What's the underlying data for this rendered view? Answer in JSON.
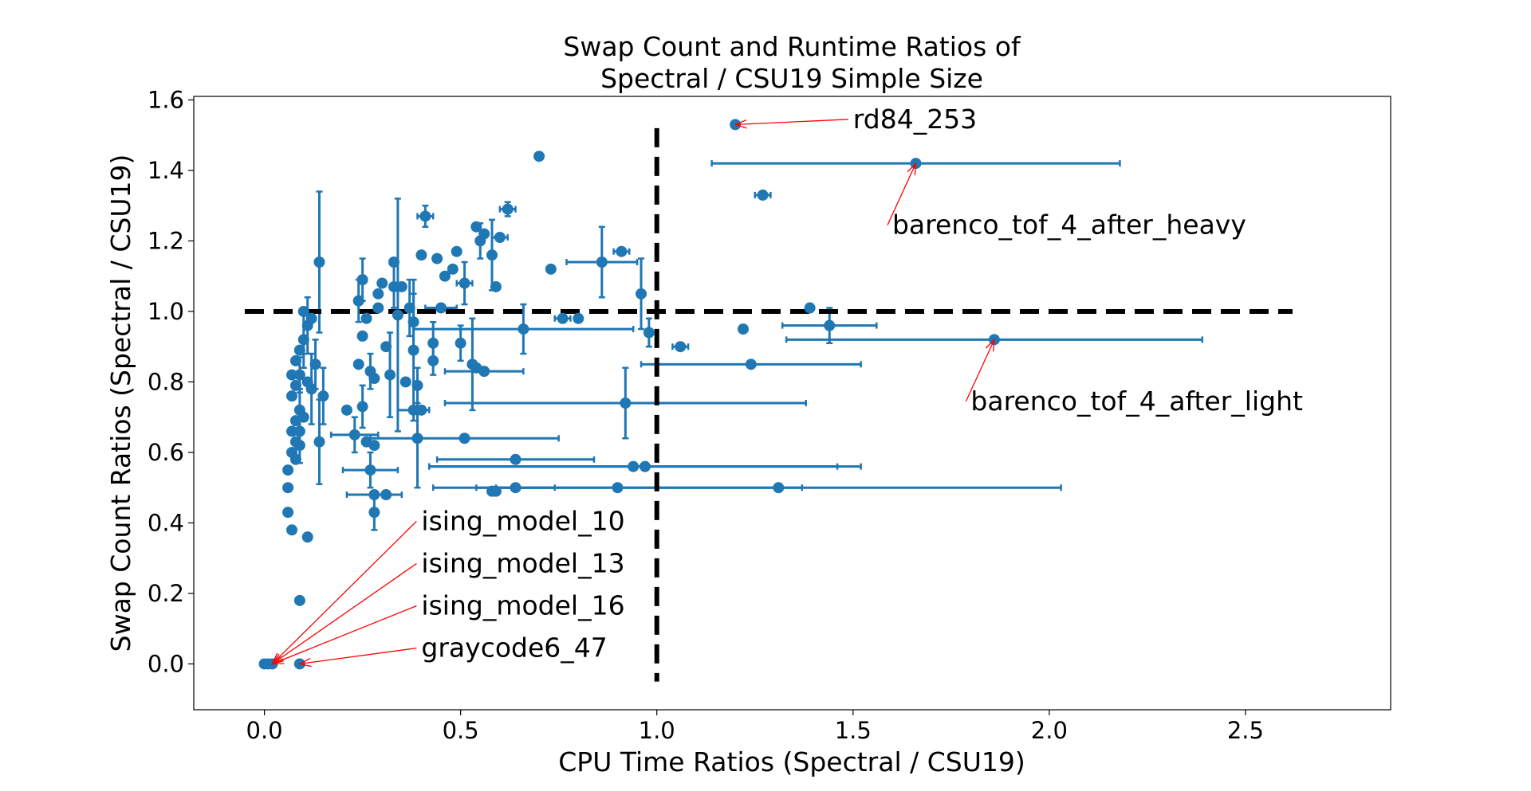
{
  "chart_data": {
    "type": "scatter",
    "title_lines": [
      "Swap Count and Runtime Ratios of",
      "Spectral / CSU19 Simple Size"
    ],
    "xlabel": "CPU Time Ratios (Spectral / CSU19)",
    "ylabel": "Swap Count Ratios (Spectral / CSU19)",
    "xlim": [
      -0.18,
      2.87
    ],
    "ylim": [
      -0.13,
      1.61
    ],
    "xticks": [
      0.0,
      0.5,
      1.0,
      1.5,
      2.0,
      2.5
    ],
    "xtick_labels": [
      "0.0",
      "0.5",
      "1.0",
      "1.5",
      "2.0",
      "2.5"
    ],
    "yticks": [
      0.0,
      0.2,
      0.4,
      0.6,
      0.8,
      1.0,
      1.2,
      1.4,
      1.6
    ],
    "ytick_labels": [
      "0.0",
      "0.2",
      "0.4",
      "0.6",
      "0.8",
      "1.0",
      "1.2",
      "1.4",
      "1.6"
    ],
    "colors": {
      "series": "#1f77b4",
      "reference": "#000000",
      "annotation": "#ff0000"
    },
    "reference_lines": [
      {
        "orientation": "horizontal",
        "value": 1.0,
        "from": -0.05,
        "to": 2.62
      },
      {
        "orientation": "vertical",
        "value": 1.0,
        "from": -0.05,
        "to": 1.52
      }
    ],
    "points": [
      {
        "x": 0.0,
        "y": 0.0
      },
      {
        "x": 0.01,
        "y": 0.0
      },
      {
        "x": 0.02,
        "y": 0.0
      },
      {
        "x": 0.09,
        "y": 0.0
      },
      {
        "x": 0.09,
        "y": 0.18
      },
      {
        "x": 0.11,
        "y": 0.36
      },
      {
        "x": 0.07,
        "y": 0.38
      },
      {
        "x": 0.06,
        "y": 0.43
      },
      {
        "x": 0.06,
        "y": 0.5
      },
      {
        "x": 0.06,
        "y": 0.55
      },
      {
        "x": 0.07,
        "y": 0.6
      },
      {
        "x": 0.08,
        "y": 0.58
      },
      {
        "x": 0.09,
        "y": 0.62,
        "yerr": 0.05
      },
      {
        "x": 0.07,
        "y": 0.66
      },
      {
        "x": 0.08,
        "y": 0.69
      },
      {
        "x": 0.09,
        "y": 0.72,
        "yerr": 0.06
      },
      {
        "x": 0.1,
        "y": 0.7
      },
      {
        "x": 0.07,
        "y": 0.76
      },
      {
        "x": 0.08,
        "y": 0.79
      },
      {
        "x": 0.09,
        "y": 0.82,
        "yerr": 0.05
      },
      {
        "x": 0.07,
        "y": 0.82
      },
      {
        "x": 0.08,
        "y": 0.86
      },
      {
        "x": 0.09,
        "y": 0.89
      },
      {
        "x": 0.1,
        "y": 0.92,
        "yerr": 0.08
      },
      {
        "x": 0.11,
        "y": 0.96,
        "yerr": 0.08
      },
      {
        "x": 0.1,
        "y": 1.0
      },
      {
        "x": 0.12,
        "y": 0.98
      },
      {
        "x": 0.13,
        "y": 0.85,
        "yerr": 0.07
      },
      {
        "x": 0.12,
        "y": 0.78,
        "yerr": 0.1
      },
      {
        "x": 0.11,
        "y": 0.8
      },
      {
        "x": 0.09,
        "y": 0.66
      },
      {
        "x": 0.08,
        "y": 0.63
      },
      {
        "x": 0.15,
        "y": 0.76,
        "yerr": 0.08
      },
      {
        "x": 0.14,
        "y": 0.63,
        "yerr": 0.12
      },
      {
        "x": 0.14,
        "y": 1.14,
        "yerr": 0.2
      },
      {
        "x": 0.21,
        "y": 0.72
      },
      {
        "x": 0.23,
        "y": 0.65,
        "xerr": 0.06,
        "yerr": 0.05
      },
      {
        "x": 0.24,
        "y": 0.85
      },
      {
        "x": 0.25,
        "y": 0.73,
        "yerr": 0.06
      },
      {
        "x": 0.26,
        "y": 0.63
      },
      {
        "x": 0.25,
        "y": 0.93
      },
      {
        "x": 0.24,
        "y": 1.03,
        "yerr": 0.06
      },
      {
        "x": 0.25,
        "y": 1.09,
        "yerr": 0.06
      },
      {
        "x": 0.26,
        "y": 0.98
      },
      {
        "x": 0.27,
        "y": 0.55,
        "xerr": 0.07,
        "yerr": 0.05
      },
      {
        "x": 0.28,
        "y": 0.43,
        "yerr": 0.05
      },
      {
        "x": 0.28,
        "y": 0.48,
        "xerr": 0.07
      },
      {
        "x": 0.28,
        "y": 0.62
      },
      {
        "x": 0.27,
        "y": 0.83,
        "yerr": 0.05
      },
      {
        "x": 0.28,
        "y": 0.81
      },
      {
        "x": 0.29,
        "y": 1.05
      },
      {
        "x": 0.29,
        "y": 1.01
      },
      {
        "x": 0.3,
        "y": 1.08
      },
      {
        "x": 0.31,
        "y": 0.48
      },
      {
        "x": 0.31,
        "y": 0.9
      },
      {
        "x": 0.32,
        "y": 0.82,
        "yerr": 0.12
      },
      {
        "x": 0.33,
        "y": 1.07,
        "yerr": 0.06
      },
      {
        "x": 0.34,
        "y": 0.99,
        "yerr": 0.33
      },
      {
        "x": 0.33,
        "y": 1.14
      },
      {
        "x": 0.35,
        "y": 1.07
      },
      {
        "x": 0.36,
        "y": 0.8
      },
      {
        "x": 0.37,
        "y": 1.01,
        "yerr": 0.08
      },
      {
        "x": 0.38,
        "y": 0.97,
        "yerr": 0.08
      },
      {
        "x": 0.38,
        "y": 0.89,
        "yerr": 0.2
      },
      {
        "x": 0.39,
        "y": 0.79,
        "yerr": 0.05
      },
      {
        "x": 0.38,
        "y": 0.72,
        "xerr": 0.04
      },
      {
        "x": 0.4,
        "y": 0.72
      },
      {
        "x": 0.39,
        "y": 0.64,
        "yerr": 0.14
      },
      {
        "x": 0.4,
        "y": 1.16
      },
      {
        "x": 0.41,
        "y": 1.27,
        "xerr": 0.02,
        "yerr": 0.03
      },
      {
        "x": 0.43,
        "y": 0.91,
        "yerr": 0.06
      },
      {
        "x": 0.43,
        "y": 0.86,
        "yerr": 0.04
      },
      {
        "x": 0.44,
        "y": 1.15
      },
      {
        "x": 0.45,
        "y": 1.01,
        "xerr": 0.04
      },
      {
        "x": 0.46,
        "y": 1.1
      },
      {
        "x": 0.48,
        "y": 1.12
      },
      {
        "x": 0.49,
        "y": 1.17
      },
      {
        "x": 0.5,
        "y": 0.91,
        "yerr": 0.05
      },
      {
        "x": 0.51,
        "y": 0.64,
        "xerr": 0.24
      },
      {
        "x": 0.51,
        "y": 1.08,
        "xerr": 0.02,
        "yerr": 0.06
      },
      {
        "x": 0.53,
        "y": 0.85,
        "yerr": 0.13
      },
      {
        "x": 0.54,
        "y": 0.84
      },
      {
        "x": 0.54,
        "y": 1.24
      },
      {
        "x": 0.55,
        "y": 1.2,
        "yerr": 0.05
      },
      {
        "x": 0.56,
        "y": 1.22
      },
      {
        "x": 0.56,
        "y": 0.83,
        "xerr": 0.1
      },
      {
        "x": 0.58,
        "y": 1.16,
        "yerr": 0.1
      },
      {
        "x": 0.58,
        "y": 0.49
      },
      {
        "x": 0.59,
        "y": 0.49
      },
      {
        "x": 0.59,
        "y": 1.07
      },
      {
        "x": 0.6,
        "y": 1.21,
        "xerr": 0.02
      },
      {
        "x": 0.62,
        "y": 1.29,
        "xerr": 0.02,
        "yerr": 0.02
      },
      {
        "x": 0.64,
        "y": 0.58,
        "xerr": 0.2
      },
      {
        "x": 0.64,
        "y": 0.5,
        "xerr": 0.1
      },
      {
        "x": 0.66,
        "y": 0.95,
        "xerr": 0.28,
        "yerr": 0.07
      },
      {
        "x": 0.7,
        "y": 1.44
      },
      {
        "x": 0.73,
        "y": 1.12
      },
      {
        "x": 0.76,
        "y": 0.98,
        "xerr": 0.02
      },
      {
        "x": 0.8,
        "y": 0.98
      },
      {
        "x": 0.86,
        "y": 1.14,
        "xerr": 0.09,
        "yerr": 0.1
      },
      {
        "x": 0.9,
        "y": 0.5,
        "xerr": 0.47
      },
      {
        "x": 0.91,
        "y": 1.17,
        "xerr": 0.02
      },
      {
        "x": 0.92,
        "y": 0.74,
        "xerr": 0.46,
        "yerr": 0.1
      },
      {
        "x": 0.94,
        "y": 0.56,
        "xerr": 0.52
      },
      {
        "x": 0.96,
        "y": 1.05,
        "yerr": 0.1
      },
      {
        "x": 0.97,
        "y": 0.56,
        "xerr": 0.55
      },
      {
        "x": 0.98,
        "y": 0.94,
        "yerr": 0.04
      },
      {
        "x": 1.06,
        "y": 0.9,
        "xerr": 0.02
      },
      {
        "x": 1.22,
        "y": 0.95
      },
      {
        "x": 1.2,
        "y": 1.53
      },
      {
        "x": 1.24,
        "y": 0.85,
        "xerr": 0.28
      },
      {
        "x": 1.27,
        "y": 1.33,
        "xerr": 0.02
      },
      {
        "x": 1.31,
        "y": 0.5,
        "xerr": 0.72
      },
      {
        "x": 1.39,
        "y": 1.01
      },
      {
        "x": 1.44,
        "y": 0.96,
        "xerr": 0.12,
        "yerr": 0.05
      },
      {
        "x": 1.66,
        "y": 1.42,
        "xerr": 0.52
      },
      {
        "x": 1.86,
        "y": 0.92,
        "xerr": 0.53
      }
    ],
    "annotations": [
      {
        "text": "rd84_253",
        "target": [
          1.2,
          1.53
        ],
        "text_pos": [
          1.5,
          1.52
        ]
      },
      {
        "text": "barenco_tof_4_after_heavy",
        "target": [
          1.66,
          1.42
        ],
        "text_pos": [
          1.6,
          1.22
        ]
      },
      {
        "text": "barenco_tof_4_after_light",
        "target": [
          1.86,
          0.92
        ],
        "text_pos": [
          1.8,
          0.72
        ]
      },
      {
        "text": "ising_model_10",
        "target": [
          0.02,
          0.0
        ],
        "text_pos": [
          0.4,
          0.38
        ]
      },
      {
        "text": "ising_model_13",
        "target": [
          0.02,
          0.0
        ],
        "text_pos": [
          0.4,
          0.26
        ]
      },
      {
        "text": "ising_model_16",
        "target": [
          0.02,
          0.0
        ],
        "text_pos": [
          0.4,
          0.14
        ]
      },
      {
        "text": "graycode6_47",
        "target": [
          0.09,
          0.0
        ],
        "text_pos": [
          0.4,
          0.02
        ]
      }
    ]
  }
}
